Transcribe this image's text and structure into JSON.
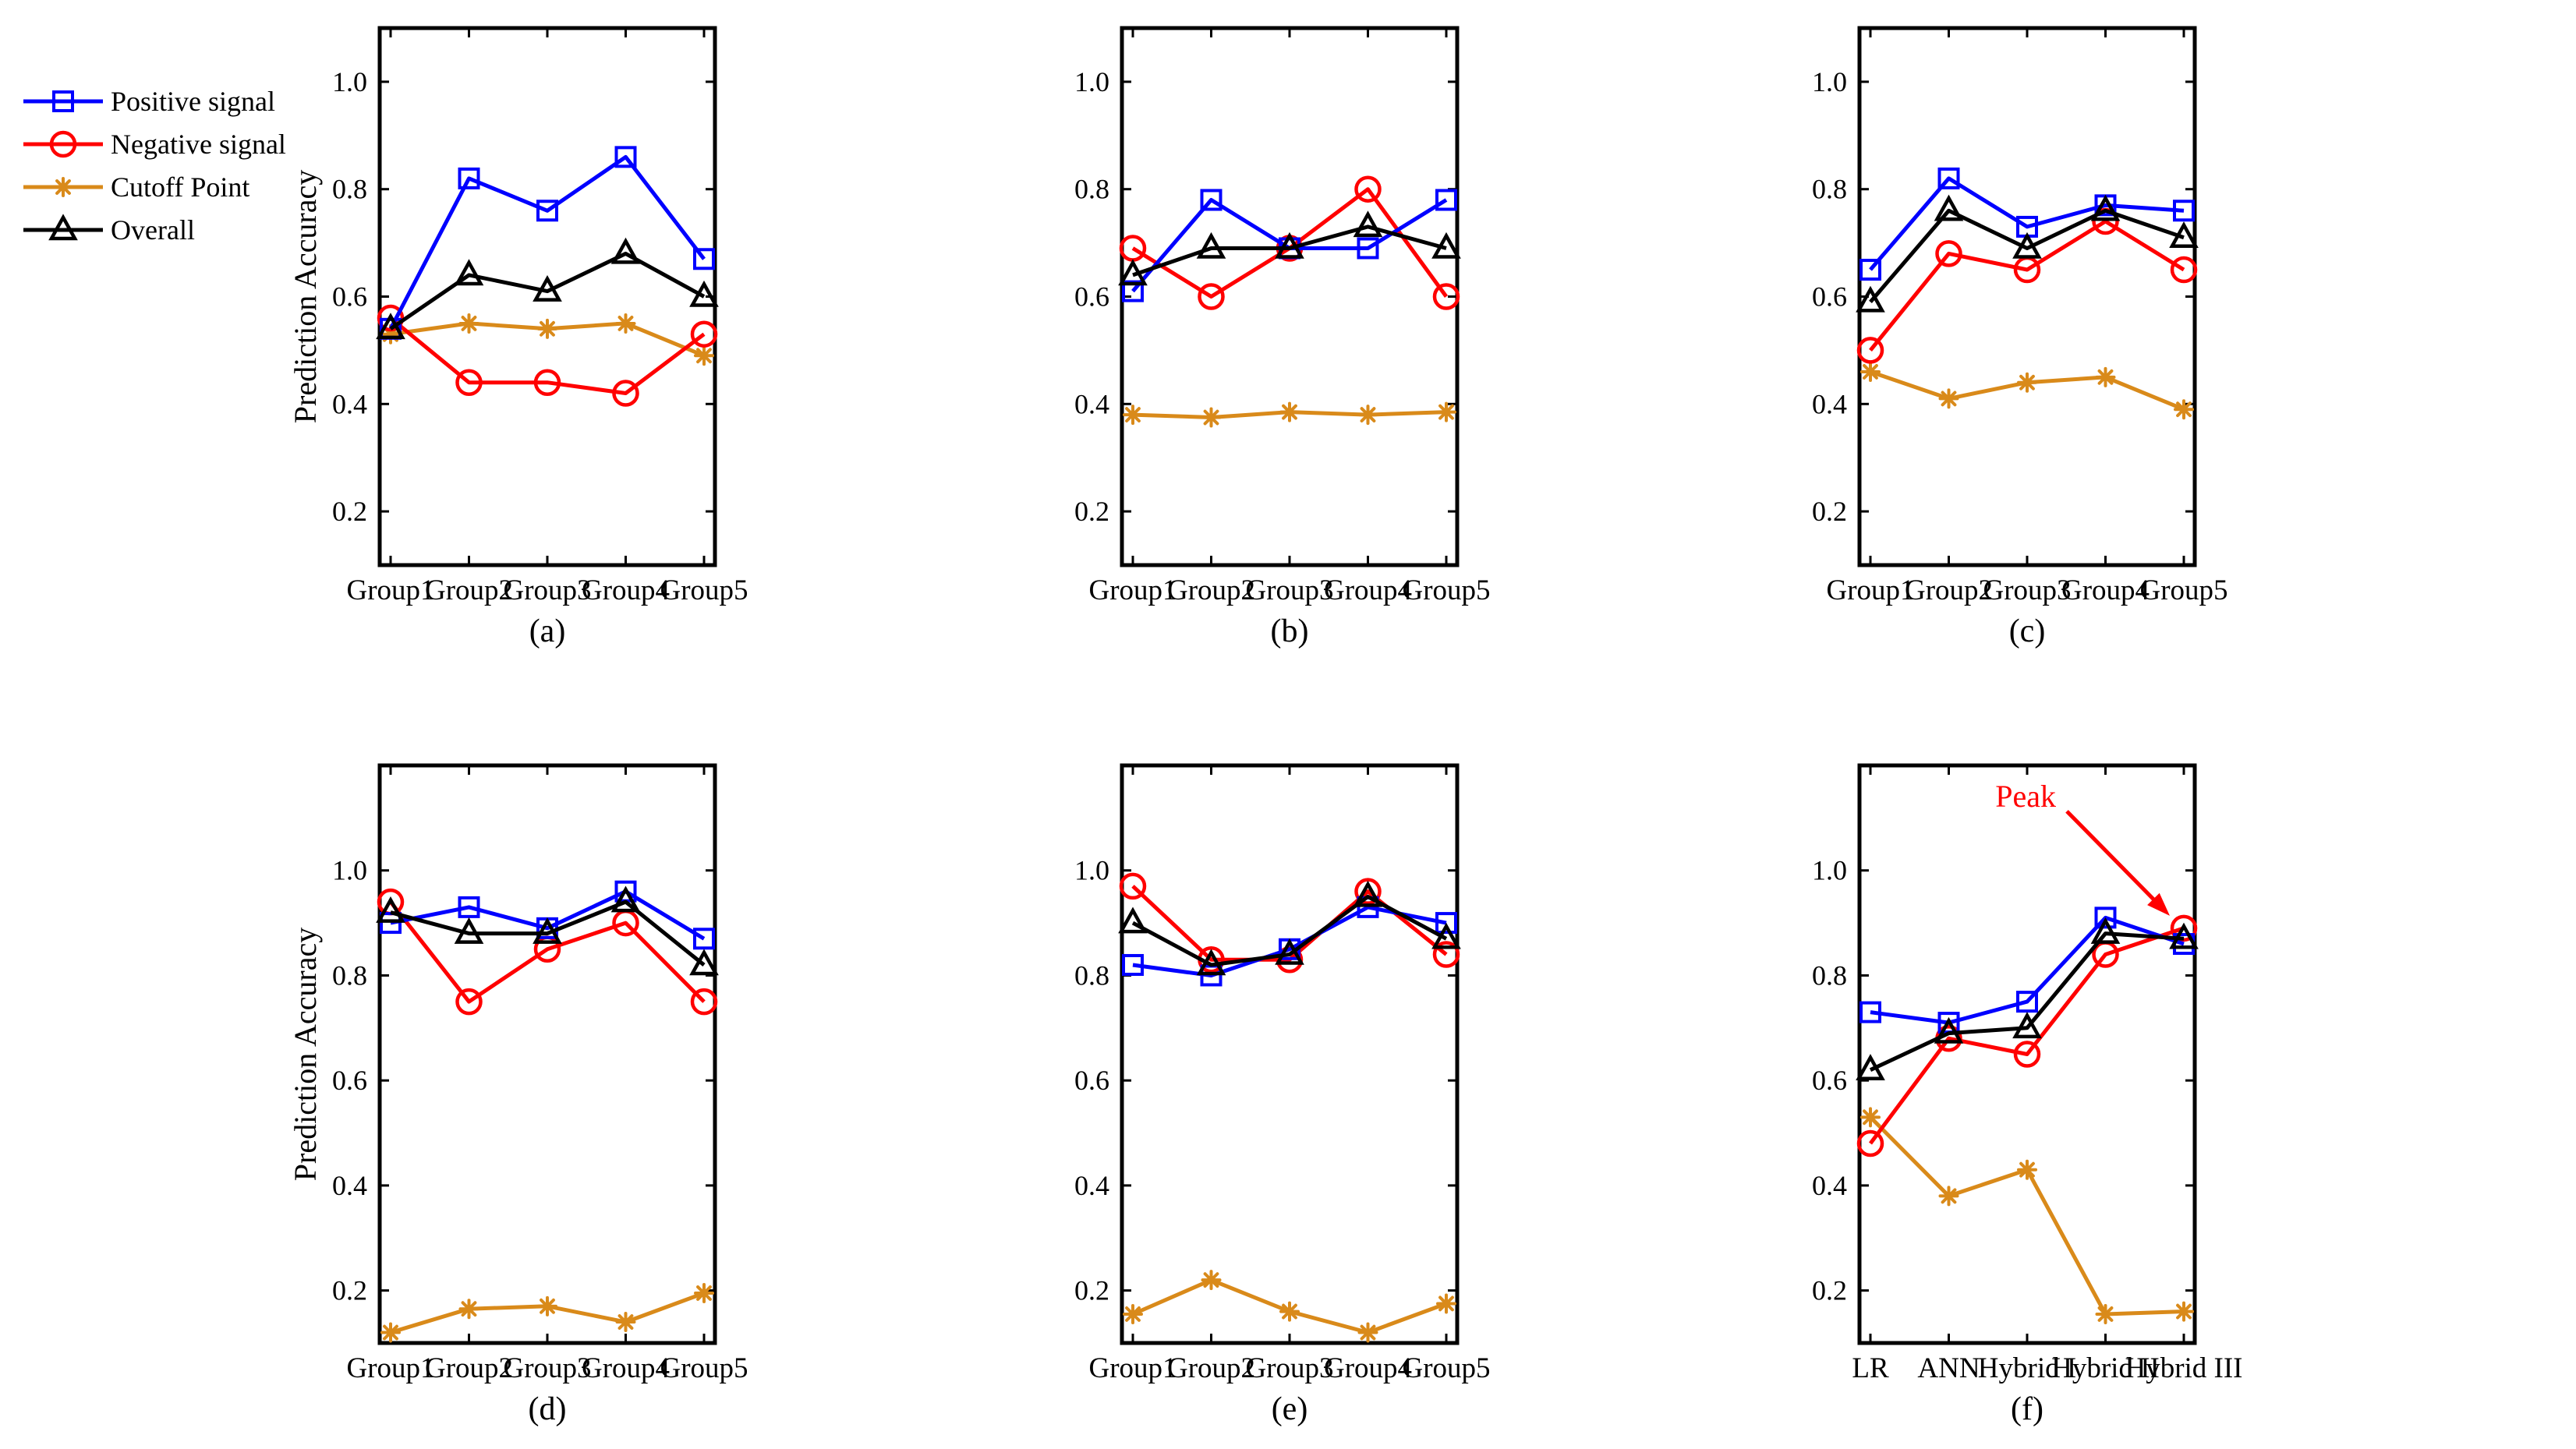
{
  "legend": {
    "entries": [
      {
        "label": "Positive signal",
        "color": "#0000ff",
        "marker": "square"
      },
      {
        "label": "Negative signal",
        "color": "#ff0000",
        "marker": "circle"
      },
      {
        "label": "Cutoff Point",
        "color": "#d98a1a",
        "marker": "asterisk"
      },
      {
        "label": "Overall",
        "color": "#000000",
        "marker": "triangle"
      }
    ]
  },
  "chart_data": [
    {
      "type": "line",
      "panel_label": "(a)",
      "title": "",
      "xlabel": "",
      "ylabel": "Prediction Accuracy",
      "categories": [
        "Group1",
        "Group2",
        "Group3",
        "Group4",
        "Group5"
      ],
      "ylim": [
        0.1,
        1.1
      ],
      "yticks": [
        "0.2",
        "0.4",
        "0.6",
        "0.8",
        "1.0"
      ],
      "series": [
        {
          "name": "Positive signal",
          "values": [
            0.54,
            0.82,
            0.76,
            0.86,
            0.67
          ]
        },
        {
          "name": "Negative signal",
          "values": [
            0.56,
            0.44,
            0.44,
            0.42,
            0.53
          ]
        },
        {
          "name": "Cutoff Point",
          "values": [
            0.53,
            0.55,
            0.54,
            0.55,
            0.49
          ]
        },
        {
          "name": "Overall",
          "values": [
            0.54,
            0.64,
            0.61,
            0.68,
            0.6
          ]
        }
      ]
    },
    {
      "type": "line",
      "panel_label": "(b)",
      "title": "",
      "xlabel": "",
      "ylabel": "",
      "categories": [
        "Group1",
        "Group2",
        "Group3",
        "Group4",
        "Group5"
      ],
      "ylim": [
        0.1,
        1.1
      ],
      "yticks": [
        "0.2",
        "0.4",
        "0.6",
        "0.8",
        "1.0"
      ],
      "series": [
        {
          "name": "Positive signal",
          "values": [
            0.61,
            0.78,
            0.69,
            0.69,
            0.78
          ]
        },
        {
          "name": "Negative signal",
          "values": [
            0.69,
            0.6,
            0.69,
            0.8,
            0.6
          ]
        },
        {
          "name": "Cutoff Point",
          "values": [
            0.38,
            0.375,
            0.385,
            0.38,
            0.385
          ]
        },
        {
          "name": "Overall",
          "values": [
            0.64,
            0.69,
            0.69,
            0.73,
            0.69
          ]
        }
      ]
    },
    {
      "type": "line",
      "panel_label": "(c)",
      "title": "",
      "xlabel": "",
      "ylabel": "",
      "categories": [
        "Group1",
        "Group2",
        "Group3",
        "Group4",
        "Group5"
      ],
      "ylim": [
        0.1,
        1.1
      ],
      "yticks": [
        "0.2",
        "0.4",
        "0.6",
        "0.8",
        "1.0"
      ],
      "series": [
        {
          "name": "Positive signal",
          "values": [
            0.65,
            0.82,
            0.73,
            0.77,
            0.76
          ]
        },
        {
          "name": "Negative signal",
          "values": [
            0.5,
            0.68,
            0.65,
            0.74,
            0.65
          ]
        },
        {
          "name": "Cutoff Point",
          "values": [
            0.46,
            0.41,
            0.44,
            0.45,
            0.39
          ]
        },
        {
          "name": "Overall",
          "values": [
            0.59,
            0.76,
            0.69,
            0.76,
            0.71
          ]
        }
      ]
    },
    {
      "type": "line",
      "panel_label": "(d)",
      "title": "",
      "xlabel": "",
      "ylabel": "Prediction Accuracy",
      "categories": [
        "Group1",
        "Group2",
        "Group3",
        "Group4",
        "Group5"
      ],
      "ylim": [
        0.1,
        1.2
      ],
      "yticks": [
        "0.2",
        "0.4",
        "0.6",
        "0.8",
        "1.0"
      ],
      "series": [
        {
          "name": "Positive signal",
          "values": [
            0.9,
            0.93,
            0.89,
            0.96,
            0.87
          ]
        },
        {
          "name": "Negative signal",
          "values": [
            0.94,
            0.75,
            0.85,
            0.9,
            0.75
          ]
        },
        {
          "name": "Cutoff Point",
          "values": [
            0.12,
            0.165,
            0.17,
            0.14,
            0.195
          ]
        },
        {
          "name": "Overall",
          "values": [
            0.92,
            0.88,
            0.88,
            0.94,
            0.82
          ]
        }
      ]
    },
    {
      "type": "line",
      "panel_label": "(e)",
      "title": "",
      "xlabel": "",
      "ylabel": "",
      "categories": [
        "Group1",
        "Group2",
        "Group3",
        "Group4",
        "Group5"
      ],
      "ylim": [
        0.1,
        1.2
      ],
      "yticks": [
        "0.2",
        "0.4",
        "0.6",
        "0.8",
        "1.0"
      ],
      "series": [
        {
          "name": "Positive signal",
          "values": [
            0.82,
            0.8,
            0.85,
            0.93,
            0.9
          ]
        },
        {
          "name": "Negative signal",
          "values": [
            0.97,
            0.83,
            0.83,
            0.96,
            0.84
          ]
        },
        {
          "name": "Cutoff Point",
          "values": [
            0.155,
            0.22,
            0.16,
            0.12,
            0.175
          ]
        },
        {
          "name": "Overall",
          "values": [
            0.9,
            0.82,
            0.84,
            0.95,
            0.87
          ]
        }
      ]
    },
    {
      "type": "line",
      "panel_label": "(f)",
      "title": "",
      "xlabel": "",
      "ylabel": "",
      "categories": [
        "LR",
        "ANN",
        "Hybrid I",
        "Hybrid II",
        "Hybrid III"
      ],
      "ylim": [
        0.1,
        1.2
      ],
      "yticks": [
        "0.2",
        "0.4",
        "0.6",
        "0.8",
        "1.0"
      ],
      "annotation": {
        "text": "Peak",
        "series": "Negative signal",
        "index": 4,
        "color": "#ff0000"
      },
      "series": [
        {
          "name": "Positive signal",
          "values": [
            0.73,
            0.71,
            0.75,
            0.91,
            0.86
          ]
        },
        {
          "name": "Negative signal",
          "values": [
            0.48,
            0.68,
            0.65,
            0.84,
            0.89
          ]
        },
        {
          "name": "Cutoff Point",
          "values": [
            0.53,
            0.38,
            0.43,
            0.155,
            0.16
          ]
        },
        {
          "name": "Overall",
          "values": [
            0.62,
            0.69,
            0.7,
            0.88,
            0.87
          ]
        }
      ]
    }
  ]
}
